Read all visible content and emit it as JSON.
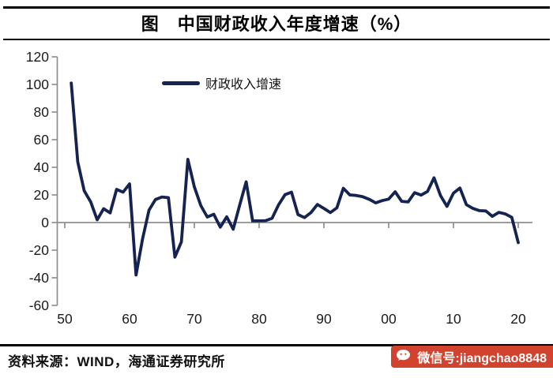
{
  "title": "图　中国财政收入年度增速（%）",
  "legend": {
    "label": "财政收入增速"
  },
  "source": "资料来源：WIND，海通证券研究所",
  "watermark": {
    "label": "微信号:jiangchao8848",
    "icon": "wechat-icon"
  },
  "colors": {
    "line": "#142350",
    "axis": "#8f8f8f",
    "tick_text": "#1a1a1a",
    "badge_bg": "#d2432f",
    "badge_text": "#ffffff"
  },
  "chart_data": {
    "type": "line",
    "title": "图　中国财政收入年度增速（%）",
    "legend_position": "top-center",
    "grid": false,
    "xlim": [
      1949,
      2022
    ],
    "ylim": [
      -60,
      120
    ],
    "yticks": [
      120,
      100,
      80,
      60,
      40,
      20,
      0,
      -20,
      -40,
      -60
    ],
    "xticks": [
      {
        "label": "50",
        "year": 1950
      },
      {
        "label": "60",
        "year": 1960
      },
      {
        "label": "70",
        "year": 1970
      },
      {
        "label": "80",
        "year": 1980
      },
      {
        "label": "90",
        "year": 1990
      },
      {
        "label": "00",
        "year": 2000
      },
      {
        "label": "10",
        "year": 2010
      },
      {
        "label": "20",
        "year": 2020
      }
    ],
    "series": [
      {
        "name": "财政收入增速",
        "x": [
          1951,
          1952,
          1953,
          1954,
          1955,
          1956,
          1957,
          1958,
          1959,
          1960,
          1961,
          1962,
          1963,
          1964,
          1965,
          1966,
          1967,
          1968,
          1969,
          1970,
          1971,
          1972,
          1973,
          1974,
          1975,
          1976,
          1977,
          1978,
          1979,
          1980,
          1981,
          1982,
          1983,
          1984,
          1985,
          1986,
          1987,
          1988,
          1989,
          1990,
          1991,
          1992,
          1993,
          1994,
          1995,
          1996,
          1997,
          1998,
          1999,
          2000,
          2001,
          2002,
          2003,
          2004,
          2005,
          2006,
          2007,
          2008,
          2009,
          2010,
          2011,
          2012,
          2013,
          2014,
          2015,
          2016,
          2017,
          2018,
          2019,
          2020
        ],
        "values": [
          101,
          44,
          23,
          15,
          2,
          10,
          7,
          24,
          22,
          28,
          -38,
          -12,
          9,
          16.7,
          18.5,
          18,
          -25,
          -14,
          45.8,
          25.8,
          12.3,
          4,
          6,
          -3.3,
          4.1,
          -4.8,
          12.6,
          29.5,
          1.2,
          1.2,
          1.4,
          3.1,
          12.8,
          20.2,
          22,
          5.8,
          3.6,
          7.2,
          13.1,
          10.2,
          7.2,
          10.6,
          24.8,
          20,
          19.6,
          18.7,
          16.8,
          14.2,
          15.9,
          17,
          22.3,
          15.4,
          14.9,
          21.6,
          19.9,
          22.5,
          32.4,
          19.5,
          11.7,
          21.3,
          25,
          12.9,
          10.2,
          8.6,
          8.4,
          4.5,
          7.4,
          6.2,
          3.8,
          -14.5
        ]
      }
    ]
  }
}
